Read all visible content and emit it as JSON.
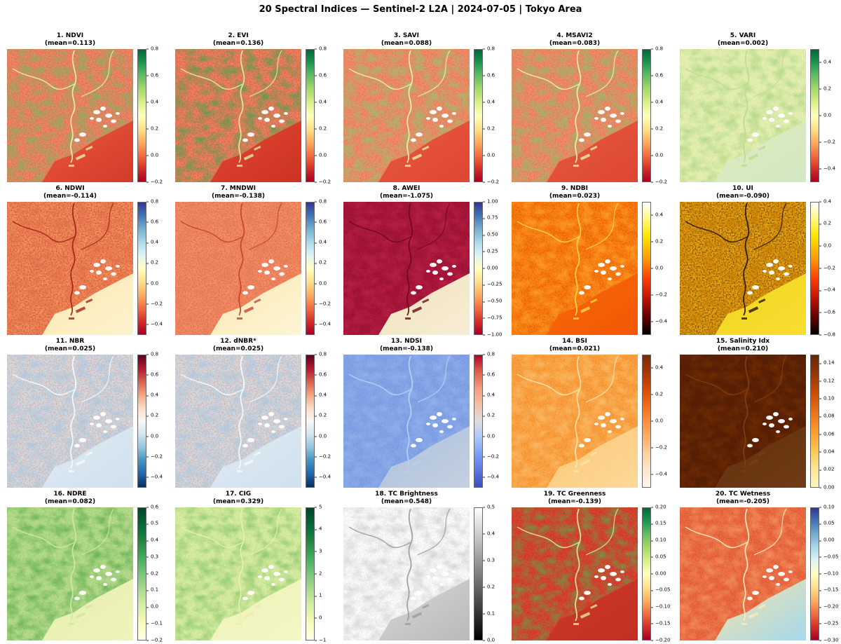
{
  "figure": {
    "title": "20 Spectral Indices — Sentinel-2 L2A | 2024-07-05 | Tokyo Area"
  },
  "chart_data": {
    "type": "heatmap",
    "title": "20 Spectral Indices — Sentinel-2 L2A | 2024-07-05 | Tokyo Area",
    "layout": {
      "rows": 4,
      "cols": 5,
      "colorbar_position": "right"
    },
    "colormaps": {
      "rdylgn": [
        "#006837",
        "#1a9850",
        "#66bd63",
        "#a6d96a",
        "#d9ef8b",
        "#ffffbf",
        "#fee08b",
        "#fdae61",
        "#f46d43",
        "#d73027",
        "#a50026"
      ],
      "rdylbu": [
        "#313695",
        "#4575b4",
        "#74add1",
        "#abd9e9",
        "#e0f3f8",
        "#ffffbf",
        "#fee090",
        "#fdae61",
        "#f46d43",
        "#d73027",
        "#a50026"
      ],
      "hot": [
        "#ffffff 0%",
        "#fff980 12%",
        "#ffe600 25%",
        "#ff9e00 42%",
        "#ff3c00 58%",
        "#c21500 72%",
        "#600000 87%",
        "#000000 100%"
      ],
      "rdbu_r": [
        "#67001f",
        "#b2182b",
        "#d6604d",
        "#f4a582",
        "#fddbc7",
        "#f7f7f7",
        "#d1e5f0",
        "#92c5de",
        "#4393c3",
        "#2166ac",
        "#053061"
      ],
      "coolwarm_r": [
        "#b40426",
        "#dd5f4b",
        "#f59c7d",
        "#f6bfa6",
        "#dddddd",
        "#aac7fd",
        "#7b9ff9",
        "#5977e3",
        "#3b4cc0"
      ],
      "oranges_r": [
        "#7f2704",
        "#a63603",
        "#d94801",
        "#f16913",
        "#fd8d3c",
        "#fdae6b",
        "#fdd0a2",
        "#fee6ce",
        "#fff5eb"
      ],
      "ylorbr_r": [
        "#662506",
        "#993404",
        "#cc4c02",
        "#ec7014",
        "#fe9929",
        "#fec44f",
        "#fee391",
        "#fff7bc"
      ],
      "ylgn_r": [
        "#004529",
        "#006837",
        "#238443",
        "#41ab5d",
        "#78c679",
        "#addd8e",
        "#d9f0a3",
        "#f7fcb9",
        "#ffffe5"
      ],
      "gray": [
        "#ffffff",
        "#000000"
      ]
    },
    "panels": [
      {
        "index": 1,
        "name": "NDVI",
        "title": "1. NDVI",
        "subtitle": "(mean=0.113)",
        "mean": 0.113,
        "cmap": "rdylgn",
        "vmin": -0.2,
        "vmax": 0.8,
        "cbar_ticks": [
          "0.8",
          "0.6",
          "0.4",
          "0.2",
          "0.0",
          "−0.2"
        ],
        "scene": {
          "base": "#ef8767",
          "speckle_fine": "#d66048",
          "speckle_coarse": "#74b85e",
          "bay": [
            "#e9593d",
            "#d43b2a"
          ],
          "river": "#e3f0a8"
        }
      },
      {
        "index": 2,
        "name": "EVI",
        "title": "2. EVI",
        "subtitle": "(mean=0.136)",
        "mean": 0.136,
        "cmap": "rdylgn",
        "vmin": -0.2,
        "vmax": 0.8,
        "cbar_ticks": [
          "0.8",
          "0.6",
          "0.4",
          "0.2",
          "0.0",
          "−0.2"
        ],
        "scene": {
          "base": "#ed8260",
          "speckle_fine": "#d25440",
          "speckle_coarse": "#3fa54e",
          "bay": [
            "#e04933",
            "#cc3322"
          ],
          "river": "#d9eda2"
        }
      },
      {
        "index": 3,
        "name": "SAVI",
        "title": "3. SAVI",
        "subtitle": "(mean=0.088)",
        "mean": 0.088,
        "cmap": "rdylgn",
        "vmin": -0.2,
        "vmax": 0.8,
        "cbar_ticks": [
          "0.8",
          "0.6",
          "0.4",
          "0.2",
          "0.0",
          "−0.2"
        ],
        "scene": {
          "base": "#f08d69",
          "speckle_fine": "#dd6b4d",
          "speckle_coarse": "#8fc76e",
          "bay": [
            "#ea5a3e",
            "#dd4733"
          ],
          "river": "#e7f1b0"
        }
      },
      {
        "index": 4,
        "name": "MSAVI2",
        "title": "4. MSAVI2",
        "subtitle": "(mean=0.083)",
        "mean": 0.083,
        "cmap": "rdylgn",
        "vmin": -0.2,
        "vmax": 0.8,
        "cbar_ticks": [
          "0.8",
          "0.6",
          "0.4",
          "0.2",
          "0.0",
          "−0.2"
        ],
        "scene": {
          "base": "#f08c68",
          "speckle_fine": "#dc6a4c",
          "speckle_coarse": "#86c268",
          "bay": [
            "#e95a3e",
            "#dc4732"
          ],
          "river": "#e6f1ae"
        }
      },
      {
        "index": 5,
        "name": "VARI",
        "title": "5. VARI",
        "subtitle": "(mean=0.002)",
        "mean": 0.002,
        "cmap": "rdylgn",
        "vmin": -0.5,
        "vmax": 0.5,
        "cbar_ticks": [
          "0.4",
          "0.2",
          "0.0",
          "−0.2",
          "−0.4"
        ],
        "scene": {
          "base": "#e6efb4",
          "speckle_fine": "#d3e49c",
          "speckle_coarse": "#a5d47e",
          "bay": [
            "#deecbc",
            "#d2e7c4"
          ],
          "river": "#bfdb90"
        }
      },
      {
        "index": 6,
        "name": "NDWI",
        "title": "6. NDWI",
        "subtitle": "(mean=-0.114)",
        "mean": -0.114,
        "cmap": "rdylbu",
        "vmin": -0.5,
        "vmax": 0.8,
        "cbar_ticks": [
          "0.8",
          "0.6",
          "0.4",
          "0.2",
          "0.0",
          "−0.2",
          "−0.4"
        ],
        "scene": {
          "base": "#f4935e",
          "speckle_fine": "#c23d28",
          "speckle_coarse": "#e06a48",
          "bay": [
            "#fbe8b2",
            "#fdf2cc"
          ],
          "river": "#a62417"
        }
      },
      {
        "index": 7,
        "name": "MNDWI",
        "title": "7. MNDWI",
        "subtitle": "(mean=-0.138)",
        "mean": -0.138,
        "cmap": "rdylbu",
        "vmin": -0.5,
        "vmax": 0.8,
        "cbar_ticks": [
          "0.8",
          "0.6",
          "0.4",
          "0.2",
          "0.0",
          "−0.2",
          "−0.4"
        ],
        "scene": {
          "base": "#f49167",
          "speckle_fine": "#d55b41",
          "speckle_coarse": "#e77a55",
          "bay": [
            "#fbe9b5",
            "#fdf4d3"
          ],
          "river": "#c44530"
        }
      },
      {
        "index": 8,
        "name": "AWEI",
        "title": "8. AWEI",
        "subtitle": "(mean=-1.075)",
        "mean": -1.075,
        "cmap": "rdylbu",
        "vmin": -1.0,
        "vmax": 1.0,
        "cbar_ticks": [
          "1.00",
          "0.75",
          "0.50",
          "0.25",
          "0.00",
          "−0.25",
          "−0.50",
          "−0.75",
          "−1.00"
        ],
        "scene": {
          "base": "#a8173a",
          "speckle_fine": "#8c0f2c",
          "speckle_coarse": "#c0244a",
          "bay": [
            "#f1e2bd",
            "#f7edd5"
          ],
          "river": "#6e0a1e"
        }
      },
      {
        "index": 9,
        "name": "NDBI",
        "title": "9. NDBI",
        "subtitle": "(mean=0.023)",
        "mean": 0.023,
        "cmap": "hot",
        "vmin": -0.5,
        "vmax": 0.5,
        "cbar_ticks": [
          "0.4",
          "0.2",
          "0.0",
          "−0.2",
          "−0.4"
        ],
        "scene": {
          "base": "#f97d0e",
          "speckle_fine": "#dd4e00",
          "speckle_coarse": "#ffa92e",
          "bay": [
            "#f7690a",
            "#f25802"
          ],
          "river": "#ffd54a"
        }
      },
      {
        "index": 10,
        "name": "UI",
        "title": "10. UI",
        "subtitle": "(mean=-0.090)",
        "mean": -0.09,
        "cmap": "hot",
        "vmin": -0.8,
        "vmax": 0.4,
        "cbar_ticks": [
          "0.4",
          "0.2",
          "0.0",
          "−0.2",
          "−0.4",
          "−0.6",
          "−0.8"
        ],
        "scene": {
          "base": "#efa812",
          "speckle_fine": "#432400",
          "speckle_coarse": "#c87b06",
          "bay": [
            "#f2d41f",
            "#f6de30"
          ],
          "river": "#2a1500"
        }
      },
      {
        "index": 11,
        "name": "NBR",
        "title": "11. NBR",
        "subtitle": "(mean=0.025)",
        "mean": 0.025,
        "cmap": "rdbu_r",
        "vmin": -0.5,
        "vmax": 0.8,
        "cbar_ticks": [
          "0.8",
          "0.6",
          "0.4",
          "0.2",
          "0.0",
          "−0.2",
          "−0.4"
        ],
        "scene": {
          "base": "#cdddea",
          "speckle_fine": "#e89a80",
          "speckle_coarse": "#a6c6de",
          "bay": [
            "#e0eaf2",
            "#cfe1ee"
          ],
          "river": "#f6fafc"
        }
      },
      {
        "index": 12,
        "name": "dNBR*",
        "title": "12. dNBR*",
        "subtitle": "(mean=0.025)",
        "mean": 0.025,
        "cmap": "rdbu_r",
        "vmin": -0.5,
        "vmax": 0.8,
        "cbar_ticks": [
          "0.8",
          "0.6",
          "0.4",
          "0.2",
          "0.0",
          "−0.2",
          "−0.4"
        ],
        "scene": {
          "base": "#cdddea",
          "speckle_fine": "#e89a80",
          "speckle_coarse": "#a6c6de",
          "bay": [
            "#e0eaf2",
            "#cfe1ee"
          ],
          "river": "#f6fafc"
        }
      },
      {
        "index": 13,
        "name": "NDSI",
        "title": "13. NDSI",
        "subtitle": "(mean=-0.138)",
        "mean": -0.138,
        "cmap": "coolwarm_r",
        "vmin": -0.5,
        "vmax": 0.8,
        "cbar_ticks": [
          "0.8",
          "0.6",
          "0.4",
          "0.2",
          "0.0",
          "−0.2",
          "−0.4"
        ],
        "scene": {
          "base": "#82a3e6",
          "speckle_fine": "#6e92da",
          "speckle_coarse": "#97b4ee",
          "bay": [
            "#aabfdc",
            "#c4d0e0"
          ],
          "river": "#bccdf2"
        }
      },
      {
        "index": 14,
        "name": "BSI",
        "title": "14. BSI",
        "subtitle": "(mean=0.021)",
        "mean": 0.021,
        "cmap": "oranges_r",
        "vmin": -0.5,
        "vmax": 0.5,
        "cbar_ticks": [
          "0.4",
          "0.2",
          "0.0",
          "−0.2",
          "−0.4"
        ],
        "scene": {
          "base": "#f9a243",
          "speckle_fine": "#f08220",
          "speckle_coarse": "#fcc270",
          "bay": [
            "#fcc673",
            "#fdd998"
          ],
          "river": "#fde3ab"
        }
      },
      {
        "index": 15,
        "name": "Salinity Idx",
        "title": "15. Salinity Idx",
        "subtitle": "(mean=0.210)",
        "mean": 0.21,
        "cmap": "ylorbr_r",
        "vmin": 0.0,
        "vmax": 0.15,
        "cbar_ticks": [
          "0.14",
          "0.12",
          "0.10",
          "0.08",
          "0.06",
          "0.04",
          "0.02",
          "0.00"
        ],
        "scene": {
          "base": "#5b2105",
          "speckle_fine": "#4a1a04",
          "speckle_coarse": "#77300a",
          "bay": [
            "#64300e",
            "#6e3c16"
          ],
          "river": "#7e3e12"
        }
      },
      {
        "index": 16,
        "name": "NDRE",
        "title": "16. NDRE",
        "subtitle": "(mean=0.082)",
        "mean": 0.082,
        "cmap": "ylgn_r",
        "vmin": -0.2,
        "vmax": 0.6,
        "cbar_ticks": [
          "0.6",
          "0.5",
          "0.4",
          "0.3",
          "0.2",
          "0.1",
          "0.0",
          "−0.1",
          "−0.2"
        ],
        "scene": {
          "base": "#b7db8e",
          "speckle_fine": "#96ca6c",
          "speckle_coarse": "#57a84b",
          "bay": [
            "#e6efae",
            "#eff3bb"
          ],
          "river": "#d4e79e"
        }
      },
      {
        "index": 17,
        "name": "CIG",
        "title": "17. CIG",
        "subtitle": "(mean=0.329)",
        "mean": 0.329,
        "cmap": "ylgn_r",
        "vmin": -1.0,
        "vmax": 5.0,
        "cbar_ticks": [
          "5",
          "4",
          "3",
          "2",
          "1",
          "0",
          "−1"
        ],
        "scene": {
          "base": "#d8eca4",
          "speckle_fine": "#bede88",
          "speckle_coarse": "#7fc163",
          "bay": [
            "#eef3b7",
            "#f4f6c4"
          ],
          "river": "#e6f0b0"
        }
      },
      {
        "index": 18,
        "name": "TC Brightness",
        "title": "18. TC Brightness",
        "subtitle": "(mean=0.548)",
        "mean": 0.548,
        "cmap": "gray",
        "vmin": 0.0,
        "vmax": 0.5,
        "cbar_ticks": [
          "0.5",
          "0.4",
          "0.3",
          "0.2",
          "0.1",
          "0.0"
        ],
        "scene": {
          "base": "#fcfcfc",
          "speckle_fine": "#e2e2e2",
          "speckle_coarse": "#cccccc",
          "bay": [
            "#d8d8d8",
            "#b9b9b9"
          ],
          "river": "#9e9e9e"
        }
      },
      {
        "index": 19,
        "name": "TC Greenness",
        "title": "19. TC Greenness",
        "subtitle": "(mean=-0.139)",
        "mean": -0.139,
        "cmap": "rdylgn",
        "vmin": -0.2,
        "vmax": 0.2,
        "cbar_ticks": [
          "0.20",
          "0.15",
          "0.10",
          "0.05",
          "0.00",
          "−0.05",
          "−0.10",
          "−0.15",
          "−0.20"
        ],
        "scene": {
          "base": "#d84530",
          "speckle_fine": "#bb2c20",
          "speckle_coarse": "#61a44c",
          "bay": [
            "#cd3929",
            "#c23024"
          ],
          "river": "#dce89e"
        }
      },
      {
        "index": 20,
        "name": "TC Wetness",
        "title": "20. TC Wetness",
        "subtitle": "(mean=-0.205)",
        "mean": -0.205,
        "cmap": "rdylbu",
        "vmin": -0.3,
        "vmax": 0.1,
        "cbar_ticks": [
          "0.10",
          "0.05",
          "0.00",
          "−0.05",
          "−0.10",
          "−0.15",
          "−0.20",
          "−0.25",
          "−0.30"
        ],
        "scene": {
          "base": "#ea6b41",
          "speckle_fine": "#d74c2d",
          "speckle_coarse": "#f49a64",
          "bay": [
            "#f7e2a4",
            "#a4d9ee"
          ],
          "river": "#fbebc4"
        }
      }
    ]
  }
}
